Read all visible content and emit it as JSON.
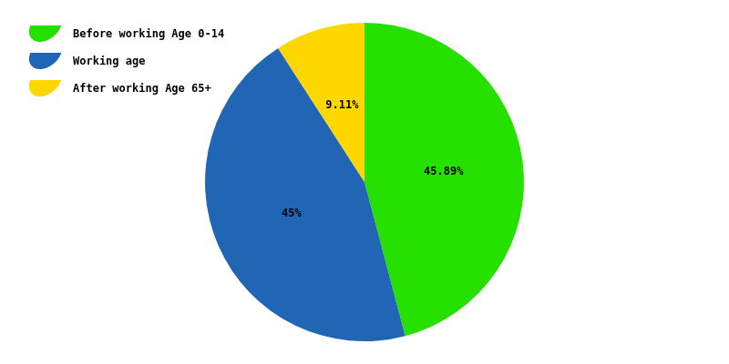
{
  "chart_data": {
    "type": "pie",
    "categories": [
      "Before working Age 0-14",
      "Working age",
      "After working Age 65+"
    ],
    "values": [
      45.89,
      45,
      9.11
    ],
    "value_labels": [
      "45.89%",
      "45%",
      "9.11%"
    ],
    "colors": [
      "#26e000",
      "#2166b4",
      "#ffd700"
    ],
    "data_labels": true,
    "legend": "top-left"
  }
}
